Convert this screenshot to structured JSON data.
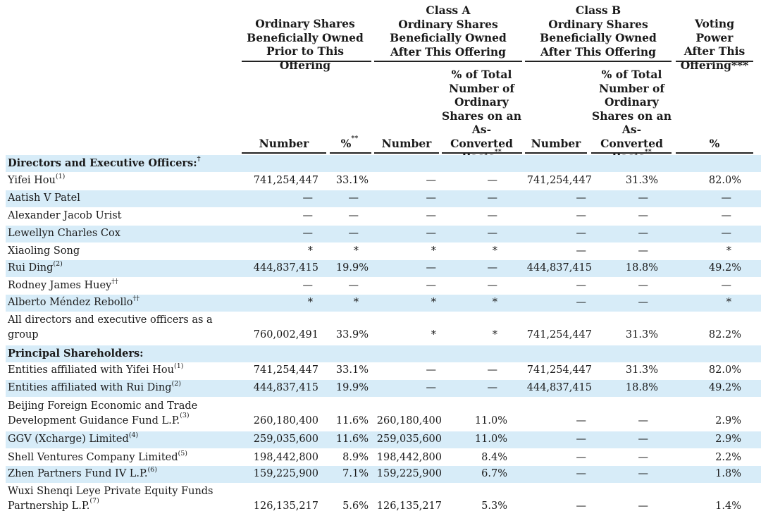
{
  "headers": {
    "group1": "Ordinary Shares\nBeneficially Owned\nPrior to This Offering",
    "group2": "Class A\nOrdinary Shares\nBeneficially Owned\nAfter This Offering",
    "group3": "Class B\nOrdinary Shares\nBeneficially Owned\nAfter This Offering",
    "group4": "Voting Power\nAfter This\nOffering***",
    "c1": "Number",
    "c2": "%",
    "c2_mark": "**",
    "c3": "Number",
    "c4": "% of Total\nNumber of\nOrdinary\nShares on an\nAs-Converted\nBasis",
    "c4_mark": "**",
    "c5": "Number",
    "c6": "% of Total\nNumber of\nOrdinary\nShares on an\nAs-Converted\nBasis",
    "c6_mark": "**",
    "c7": "%"
  },
  "rows": [
    {
      "label": "Directors and Executive Officers:",
      "sup": "†",
      "section": true,
      "vals": [
        "",
        "",
        "",
        "",
        "",
        "",
        ""
      ]
    },
    {
      "label": "Yifei Hou",
      "sup": "(1)",
      "vals": [
        "741,254,447",
        "33.1%",
        "—",
        "—",
        "741,254,447",
        "31.3%",
        "82.0%"
      ]
    },
    {
      "label": "Aatish V Patel",
      "sup": "",
      "vals": [
        "—",
        "—",
        "—",
        "—",
        "—",
        "—",
        "—"
      ]
    },
    {
      "label": "Alexander Jacob Urist",
      "sup": "",
      "vals": [
        "—",
        "—",
        "—",
        "—",
        "—",
        "—",
        "—"
      ]
    },
    {
      "label": "Lewellyn Charles Cox",
      "sup": "",
      "vals": [
        "—",
        "—",
        "—",
        "—",
        "—",
        "—",
        "—"
      ]
    },
    {
      "label": "Xiaoling Song",
      "sup": "",
      "vals": [
        "*",
        "*",
        "*",
        "*",
        "—",
        "—",
        "*"
      ]
    },
    {
      "label": "Rui Ding",
      "sup": "(2)",
      "vals": [
        "444,837,415",
        "19.9%",
        "—",
        "—",
        "444,837,415",
        "18.8%",
        "49.2%"
      ]
    },
    {
      "label": "Rodney James Huey",
      "sup": "††",
      "vals": [
        "—",
        "—",
        "—",
        "—",
        "—",
        "—",
        "—"
      ]
    },
    {
      "label": "Alberto Méndez Rebollo",
      "sup": "††",
      "vals": [
        "*",
        "*",
        "*",
        "*",
        "—",
        "—",
        "*"
      ]
    },
    {
      "label": "All directors and executive officers as a\n   group",
      "sup": "",
      "vals": [
        "760,002,491",
        "33.9%",
        "*",
        "*",
        "741,254,447",
        "31.3%",
        "82.2%"
      ]
    },
    {
      "label": "Principal Shareholders:",
      "sup": "",
      "section": true,
      "vals": [
        "",
        "",
        "",
        "",
        "",
        "",
        ""
      ]
    },
    {
      "label": "Entities affiliated with Yifei Hou",
      "sup": "(1)",
      "vals": [
        "741,254,447",
        "33.1%",
        "—",
        "—",
        "741,254,447",
        "31.3%",
        "82.0%"
      ]
    },
    {
      "label": "Entities affiliated with Rui Ding",
      "sup": "(2)",
      "vals": [
        "444,837,415",
        "19.9%",
        "—",
        "—",
        "444,837,415",
        "18.8%",
        "49.2%"
      ]
    },
    {
      "label": "Beijing Foreign Economic and Trade\n    Development Guidance Fund L.P.",
      "sup": "(3)",
      "vals": [
        "260,180,400",
        "11.6%",
        "260,180,400",
        "11.0%",
        "—",
        "—",
        "2.9%"
      ]
    },
    {
      "label": "GGV (Xcharge) Limited",
      "sup": "(4)",
      "vals": [
        "259,035,600",
        "11.6%",
        "259,035,600",
        "11.0%",
        "—",
        "—",
        "2.9%"
      ]
    },
    {
      "label": "Shell Ventures Company Limited",
      "sup": "(5)",
      "vals": [
        "198,442,800",
        "8.9%",
        "198,442,800",
        "8.4%",
        "—",
        "—",
        "2.2%"
      ]
    },
    {
      "label": "Zhen Partners Fund IV L.P.",
      "sup": "(6)",
      "vals": [
        "159,225,900",
        "7.1%",
        "159,225,900",
        "6.7%",
        "—",
        "—",
        "1.8%"
      ]
    },
    {
      "label": "Wuxi Shenqi Leye Private Equity Funds\n    Partnership L.P.",
      "sup": "(7)",
      "vals": [
        "126,135,217",
        "5.6%",
        "126,135,217",
        "5.3%",
        "—",
        "—",
        "1.4%"
      ]
    }
  ]
}
